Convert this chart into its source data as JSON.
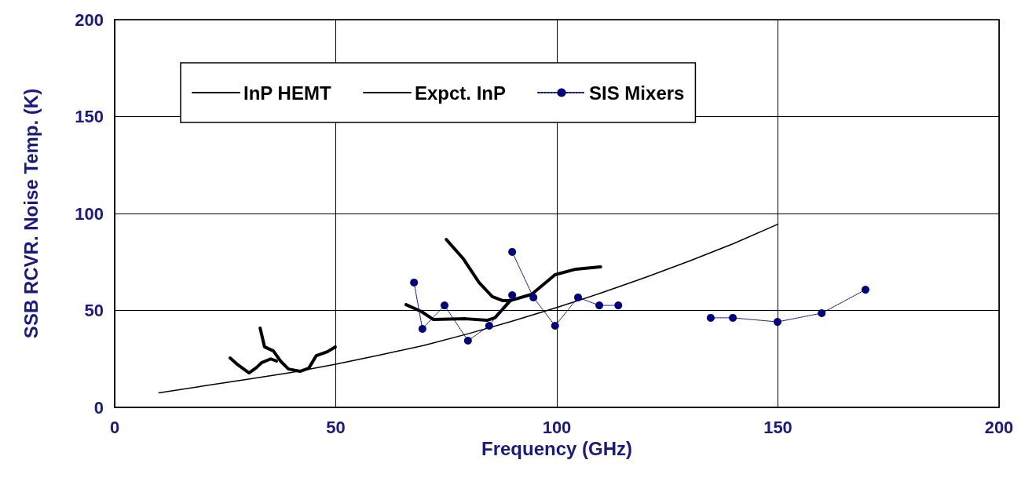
{
  "chart_data": {
    "type": "line",
    "xlabel": "Frequency (GHz)",
    "ylabel": "SSB RCVR. Noise Temp. (K)",
    "xlim": [
      0,
      200
    ],
    "xticks": [
      0,
      50,
      100,
      150,
      200
    ],
    "ylim": [
      0,
      200
    ],
    "yticks": [
      0,
      50,
      100,
      150,
      200
    ],
    "grid": true,
    "legend": "top",
    "series": [
      {
        "name": "InP HEMT",
        "color": "#000000",
        "marker": "none",
        "line_style": "solid",
        "x": [
          26.1,
          27.9,
          30.4,
          32.1,
          33.2,
          35.3,
          36.6
        ],
        "values": [
          25.5,
          21.9,
          17.8,
          20.6,
          23,
          25,
          23.9
        ]
      },
      {
        "color": "#000000",
        "marker": "none",
        "line_style": "solid",
        "x": [
          32.9,
          33.9,
          35.9,
          37.5,
          39.3,
          41.9,
          43.9,
          45.6,
          48.1,
          49.9
        ],
        "values": [
          40.9,
          31.2,
          29.1,
          23.9,
          19.8,
          18.6,
          20.2,
          26.7,
          28.7,
          31.2
        ]
      },
      {
        "color": "#000000",
        "marker": "none",
        "line_style": "solid",
        "x": [
          65.9,
          69.4,
          72.1,
          79.4,
          84.2,
          86,
          89.5,
          94.3,
          99.6,
          104.3,
          109.9
        ],
        "values": [
          53,
          49.4,
          45.3,
          45.7,
          44.9,
          46.2,
          55.1,
          58.3,
          68.4,
          71.3,
          72.5
        ]
      },
      {
        "color": "#000000",
        "marker": "none",
        "line_style": "solid",
        "x": [
          75,
          78.9,
          82.4,
          85.4,
          87.7,
          89.5
        ],
        "values": [
          86.6,
          76.5,
          64.4,
          57.1,
          55.1,
          55.1
        ]
      },
      {
        "name": "Expct. InP",
        "color": "#000000",
        "marker": "none",
        "line_style": "solid",
        "x": [
          10,
          20,
          30,
          40,
          50,
          60,
          70,
          80,
          90,
          100,
          110,
          120,
          130,
          140,
          150
        ],
        "values": [
          7.5,
          11,
          14.5,
          18,
          22.3,
          27,
          32,
          38,
          44.5,
          51.5,
          59,
          67,
          75.5,
          84.5,
          94.5
        ]
      },
      {
        "name": "SIS Mixers",
        "color": "#000080",
        "marker": "circle",
        "line_style": "dotted",
        "x": [
          67.7,
          69.6,
          74.6,
          79.9,
          84.7,
          89.9
        ],
        "values": [
          64.4,
          40.5,
          52.6,
          34.4,
          42.1,
          57.9
        ]
      },
      {
        "color": "#000080",
        "marker": "circle",
        "line_style": "dotted",
        "x": [
          89.9,
          94.7,
          99.6,
          104.8,
          109.6,
          113.9
        ],
        "values": [
          80.2,
          56.7,
          42.1,
          56.7,
          52.6,
          52.6
        ]
      },
      {
        "color": "#000080",
        "marker": "circle",
        "line_style": "dotted",
        "x": [
          134.8,
          139.8,
          149.9,
          159.9,
          169.8
        ],
        "values": [
          46.2,
          46.2,
          44.1,
          48.6,
          60.7
        ]
      }
    ]
  }
}
